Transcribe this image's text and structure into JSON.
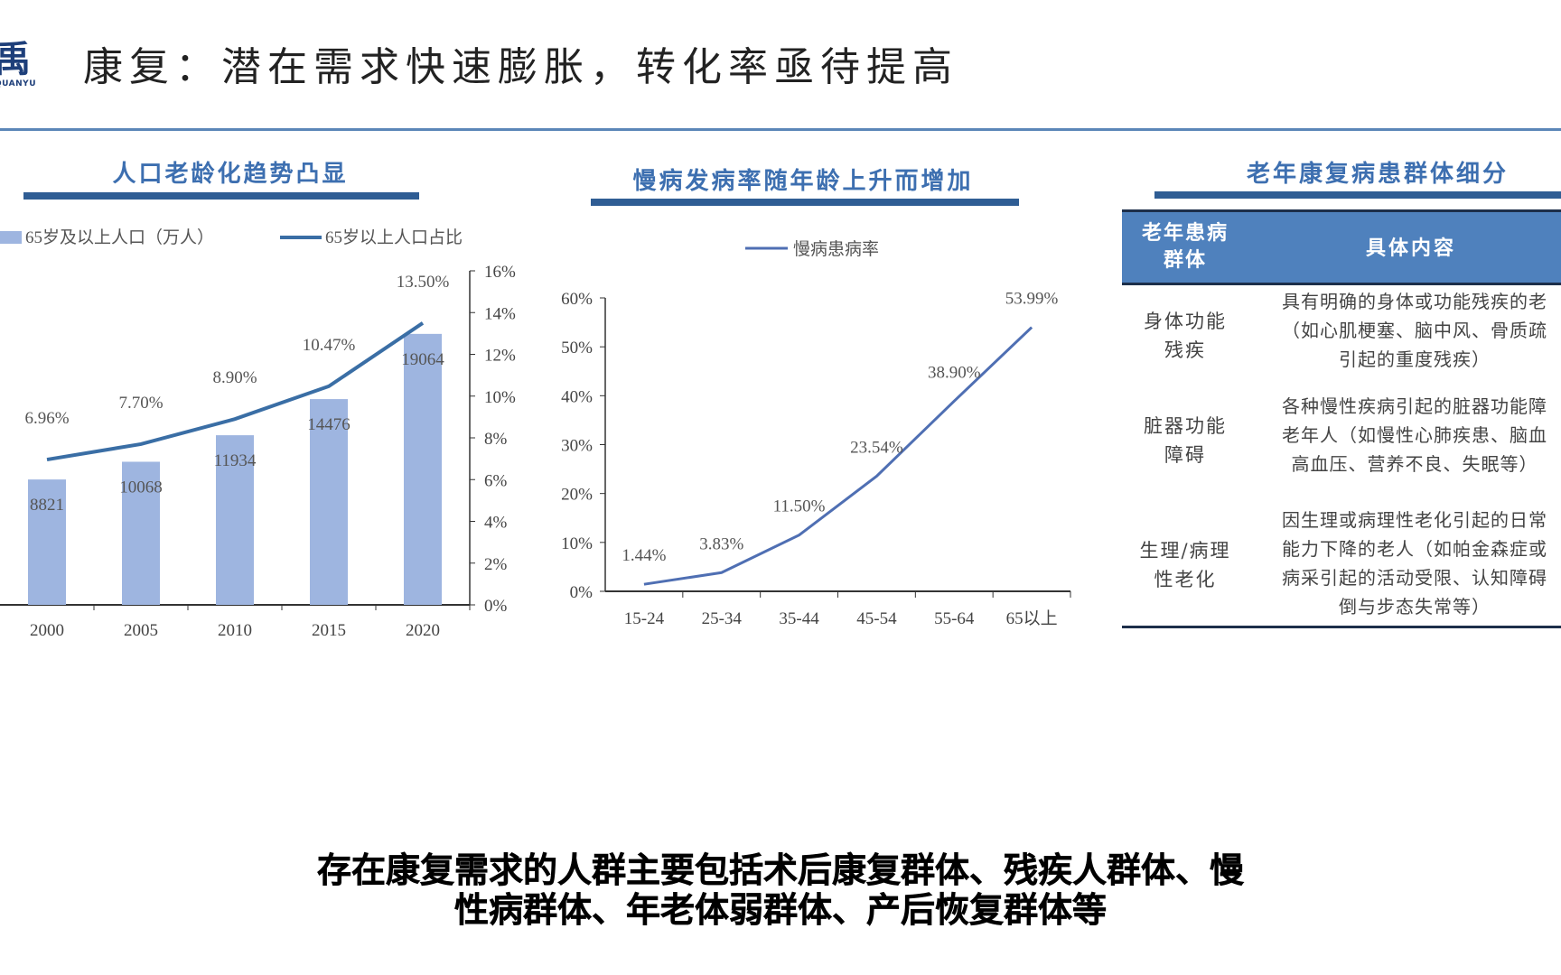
{
  "logo": {
    "main": "禹",
    "sub": "QUANYU"
  },
  "title": "康复：潜在需求快速膨胀，转化率亟待提高",
  "caption": [
    "存在康复需求的人群主要包括术后康复群体、残疾人群体、慢",
    "性病群体、年老体弱群体、产后恢复群体等"
  ],
  "panels": {
    "left_title": "人口老龄化趋势凸显",
    "middle_title": "慢病发病率随年龄上升而增加",
    "right_title": "老年康复病患群体细分"
  },
  "colors": {
    "bar": "#9eb5e0",
    "line": "#3a6ea5",
    "line2": "#4f6fb3",
    "header": "#4f81bd",
    "accent": "#2f5d94"
  },
  "chart_data": [
    {
      "type": "bar",
      "title": "人口老龄化趋势凸显",
      "categories": [
        "2000",
        "2005",
        "2010",
        "2015",
        "2020"
      ],
      "series": [
        {
          "name": "65岁及以上人口（万人）",
          "type": "bar",
          "values": [
            8821,
            10068,
            11934,
            14476,
            19064
          ],
          "labels": [
            "8821",
            "10068",
            "11934",
            "14476",
            "19064"
          ]
        },
        {
          "name": "65岁以上人口占比",
          "type": "line",
          "axis": "right",
          "values": [
            6.96,
            7.7,
            8.9,
            10.47,
            13.5
          ],
          "labels": [
            "6.96%",
            "7.70%",
            "8.90%",
            "10.47%",
            "13.50%"
          ]
        }
      ],
      "y2lim": [
        0,
        16
      ],
      "y2ticks": [
        "0%",
        "2%",
        "4%",
        "6%",
        "8%",
        "10%",
        "12%",
        "14%",
        "16%"
      ],
      "legend": "top-left"
    },
    {
      "type": "line",
      "title": "慢病发病率随年龄上升而增加",
      "categories": [
        "15-24",
        "25-34",
        "35-44",
        "45-54",
        "55-64",
        "65以上"
      ],
      "series": [
        {
          "name": "慢病患病率",
          "values": [
            1.44,
            3.83,
            11.5,
            23.54,
            38.9,
            53.99
          ],
          "labels": [
            "1.44%",
            "3.83%",
            "11.50%",
            "23.54%",
            "38.90%",
            "53.99%"
          ]
        }
      ],
      "ylim": [
        0,
        60
      ],
      "yticks": [
        "0%",
        "10%",
        "20%",
        "30%",
        "40%",
        "50%",
        "60%"
      ],
      "legend": "top-center"
    },
    {
      "type": "table",
      "title": "老年康复病患群体细分",
      "columns": [
        "老年患病\n群体",
        "具体内容"
      ],
      "rows": [
        [
          "身体功能\n残疾",
          "具有明确的身体或功能残疾的老\n（如心肌梗塞、脑中风、骨质疏\n引起的重度残疾）"
        ],
        [
          "脏器功能\n障碍",
          "各种慢性疾病引起的脏器功能障\n老年人（如慢性心肺疾患、脑血\n高血压、营养不良、失眠等）"
        ],
        [
          "生理/病理\n性老化",
          "因生理或病理性老化引起的日常\n能力下降的老人（如帕金森症或\n病采引起的活动受限、认知障碍\n倒与步态失常等）"
        ]
      ]
    }
  ]
}
